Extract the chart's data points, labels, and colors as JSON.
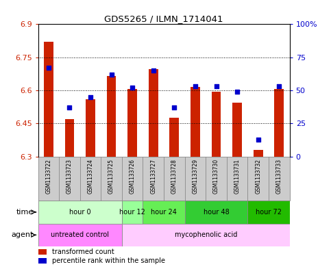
{
  "title": "GDS5265 / ILMN_1714041",
  "samples": [
    "GSM1133722",
    "GSM1133723",
    "GSM1133724",
    "GSM1133725",
    "GSM1133726",
    "GSM1133727",
    "GSM1133728",
    "GSM1133729",
    "GSM1133730",
    "GSM1133731",
    "GSM1133732",
    "GSM1133733"
  ],
  "red_values": [
    6.82,
    6.47,
    6.56,
    6.665,
    6.605,
    6.695,
    6.475,
    6.615,
    6.595,
    6.545,
    6.33,
    6.605
  ],
  "blue_values": [
    67,
    37,
    45,
    62,
    52,
    65,
    37,
    53,
    53,
    49,
    13,
    53
  ],
  "ymin": 6.3,
  "ymax": 6.9,
  "yticks_left": [
    6.3,
    6.45,
    6.6,
    6.75,
    6.9
  ],
  "ytick_labels_left": [
    "6.3",
    "6.45",
    "6.6",
    "6.75",
    "6.9"
  ],
  "yticks_right": [
    0,
    25,
    50,
    75,
    100
  ],
  "ytick_labels_right": [
    "0",
    "25",
    "50",
    "75",
    "100%"
  ],
  "bar_color": "#cc2200",
  "dot_color": "#0000cc",
  "bg_color": "#ffffff",
  "sample_bg_color": "#cccccc",
  "time_groups": [
    {
      "label": "hour 0",
      "start": 0,
      "end": 4,
      "color": "#ccffcc"
    },
    {
      "label": "hour 12",
      "start": 4,
      "end": 5,
      "color": "#99ff99"
    },
    {
      "label": "hour 24",
      "start": 5,
      "end": 7,
      "color": "#66ee55"
    },
    {
      "label": "hour 48",
      "start": 7,
      "end": 10,
      "color": "#33cc33"
    },
    {
      "label": "hour 72",
      "start": 10,
      "end": 12,
      "color": "#22bb00"
    }
  ],
  "agent_groups": [
    {
      "label": "untreated control",
      "start": 0,
      "end": 4,
      "color": "#ff88ff"
    },
    {
      "label": "mycophenolic acid",
      "start": 4,
      "end": 12,
      "color": "#ffccff"
    }
  ],
  "time_label": "time",
  "agent_label": "agent",
  "legend_red": "transformed count",
  "legend_blue": "percentile rank within the sample"
}
